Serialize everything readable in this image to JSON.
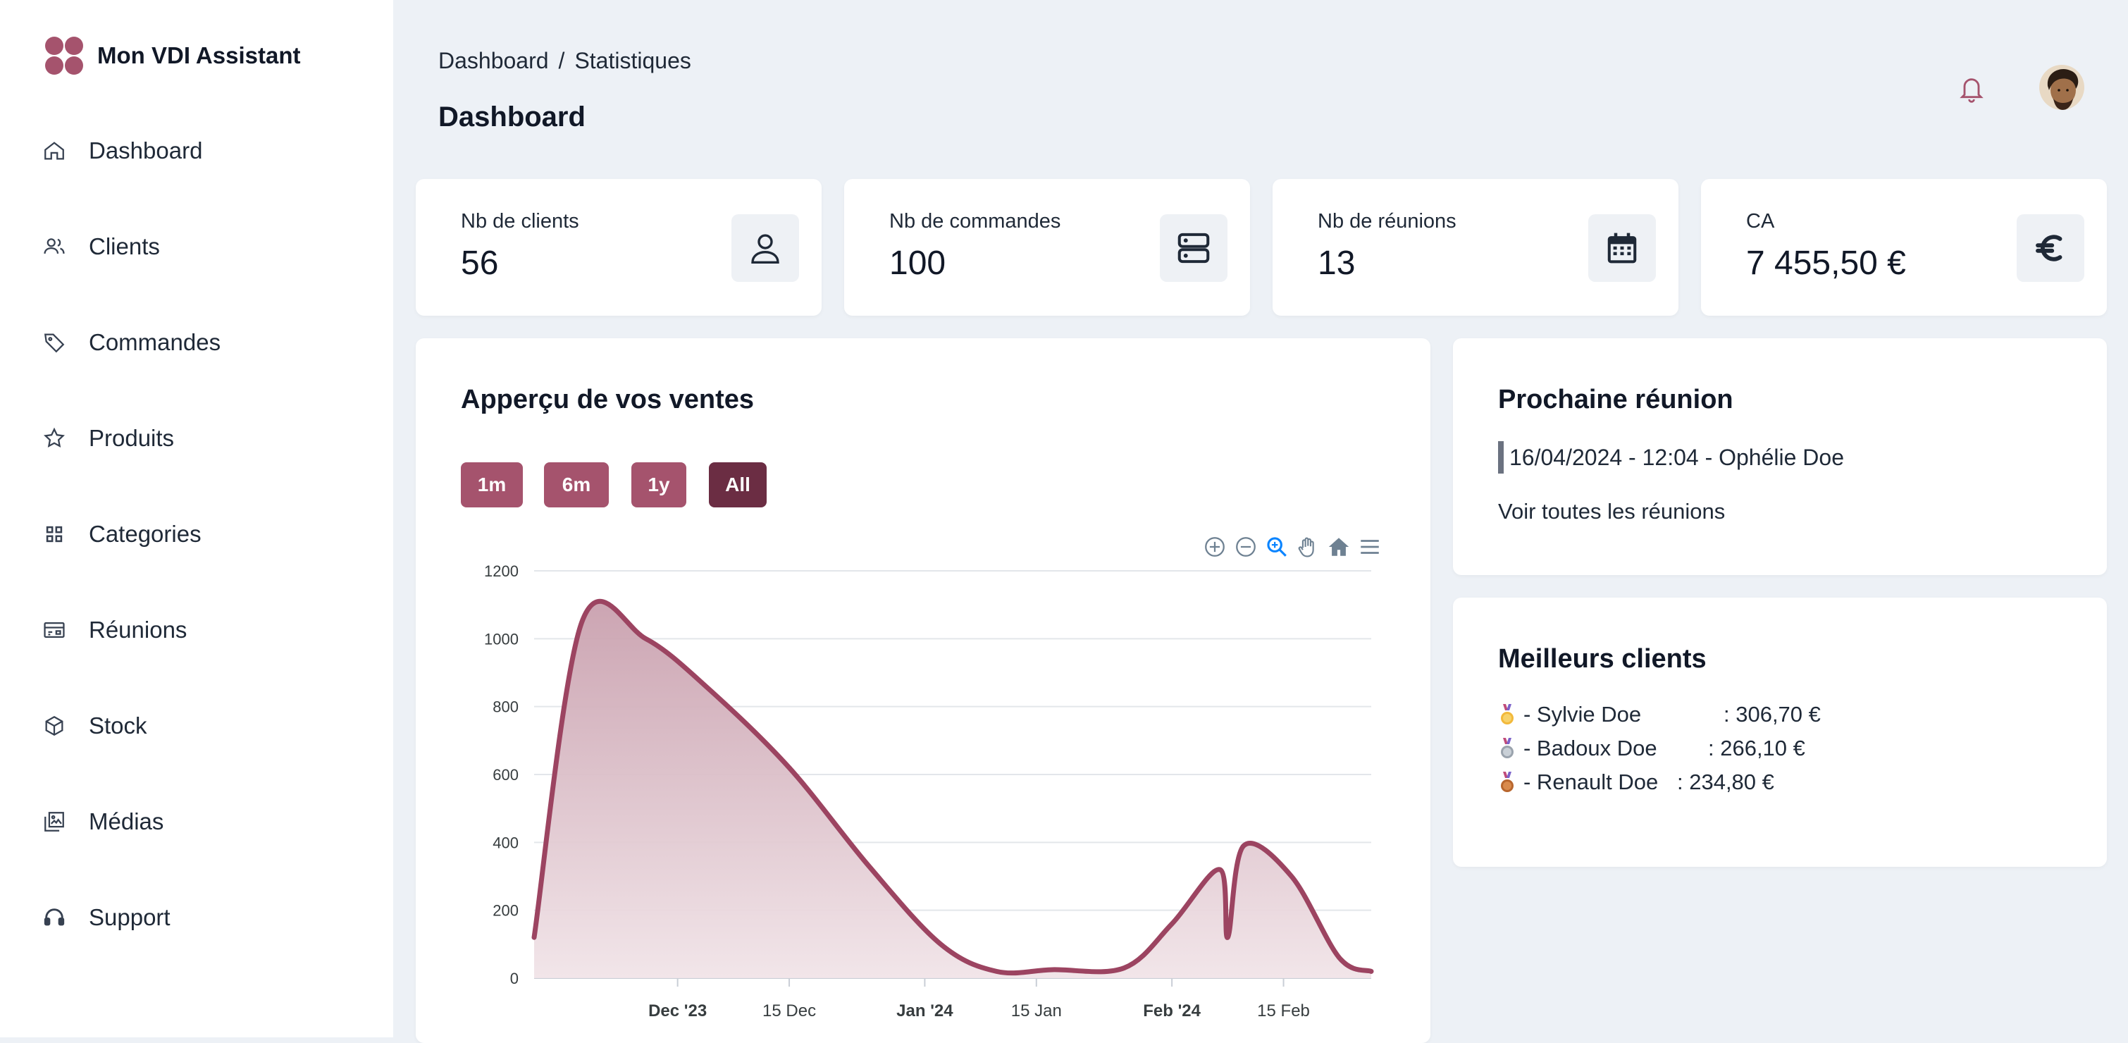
{
  "app": {
    "name": "Mon VDI Assistant"
  },
  "sidebar": {
    "items": [
      {
        "label": "Dashboard",
        "icon": "home-icon"
      },
      {
        "label": "Clients",
        "icon": "users-icon"
      },
      {
        "label": "Commandes",
        "icon": "tag-icon"
      },
      {
        "label": "Produits",
        "icon": "star-icon"
      },
      {
        "label": "Categories",
        "icon": "grid-icon"
      },
      {
        "label": "Réunions",
        "icon": "card-icon"
      },
      {
        "label": "Stock",
        "icon": "box-icon"
      },
      {
        "label": "Médias",
        "icon": "images-icon"
      },
      {
        "label": "Support",
        "icon": "headset-icon"
      }
    ]
  },
  "header": {
    "breadcrumb": {
      "root": "Dashboard",
      "separator": "/",
      "current": "Statistiques"
    },
    "title": "Dashboard"
  },
  "stats": [
    {
      "label": "Nb de clients",
      "value": "56",
      "icon": "user-icon"
    },
    {
      "label": "Nb de commandes",
      "value": "100",
      "icon": "server-icon"
    },
    {
      "label": "Nb de réunions",
      "value": "13",
      "icon": "calendar-icon"
    },
    {
      "label": "CA",
      "value": "7 455,50 €",
      "icon": "euro-icon"
    }
  ],
  "sales": {
    "title": "Apperçu de vos ventes",
    "ranges": [
      "1m",
      "6m",
      "1y",
      "All"
    ],
    "active_range": "All"
  },
  "meeting": {
    "title": "Prochaine réunion",
    "next": "16/04/2024 - 12:04 - Ophélie Doe",
    "link": "Voir toutes les réunions"
  },
  "best_clients": {
    "title": "Meilleurs clients",
    "rows": [
      {
        "medal": "gold-medal-icon",
        "name": "- Sylvie Doe",
        "amount": ": 306,70 €"
      },
      {
        "medal": "silver-medal-icon",
        "name": "- Badoux Doe",
        "amount": ": 266,10 €"
      },
      {
        "medal": "bronze-medal-icon",
        "name": "- Renault Doe",
        "amount": ": 234,80 €"
      }
    ]
  },
  "colors": {
    "accent": "#a5536d",
    "accent_dark": "#6b2d43",
    "line": "#9c4461",
    "background": "#edf1f6"
  },
  "chart_data": {
    "type": "area",
    "title": "",
    "xlabel": "",
    "ylabel": "",
    "ylim": [
      0,
      1200
    ],
    "yticks": [
      0,
      200,
      400,
      600,
      800,
      1000,
      1200
    ],
    "xticks": [
      {
        "label": "Dec '23",
        "bold": true,
        "date": "2023-12-01"
      },
      {
        "label": "15 Dec",
        "bold": false,
        "date": "2023-12-15"
      },
      {
        "label": "Jan '24",
        "bold": true,
        "date": "2024-01-01"
      },
      {
        "label": "15 Jan",
        "bold": false,
        "date": "2024-01-15"
      },
      {
        "label": "Feb '24",
        "bold": true,
        "date": "2024-02-01"
      },
      {
        "label": "15 Feb",
        "bold": false,
        "date": "2024-02-15"
      }
    ],
    "x_range": [
      "2023-11-13",
      "2024-02-26"
    ],
    "series": [
      {
        "name": "Ventes",
        "points": [
          {
            "date": "2023-11-13",
            "value": 120
          },
          {
            "date": "2023-11-19",
            "value": 1050
          },
          {
            "date": "2023-11-27",
            "value": 1000
          },
          {
            "date": "2023-12-05",
            "value": 850
          },
          {
            "date": "2023-12-15",
            "value": 620
          },
          {
            "date": "2023-12-25",
            "value": 330
          },
          {
            "date": "2024-01-03",
            "value": 100
          },
          {
            "date": "2024-01-10",
            "value": 20
          },
          {
            "date": "2024-01-17",
            "value": 25
          },
          {
            "date": "2024-01-26",
            "value": 30
          },
          {
            "date": "2024-02-01",
            "value": 160
          },
          {
            "date": "2024-02-07",
            "value": 320
          },
          {
            "date": "2024-02-08",
            "value": 120
          },
          {
            "date": "2024-02-10",
            "value": 390
          },
          {
            "date": "2024-02-16",
            "value": 300
          },
          {
            "date": "2024-02-22",
            "value": 60
          },
          {
            "date": "2024-02-26",
            "value": 20
          }
        ]
      }
    ]
  }
}
